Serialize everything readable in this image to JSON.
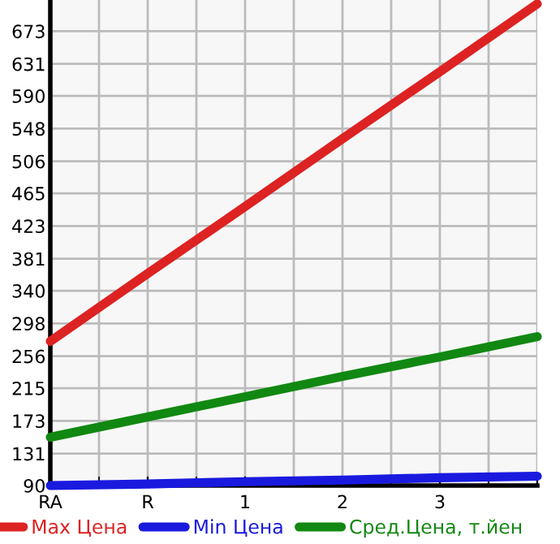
{
  "chart_data": {
    "type": "line",
    "categories": [
      "RA",
      "R",
      "1",
      "2",
      "3",
      null
    ],
    "series": [
      {
        "name": "Max Цена",
        "color": "#dd2222",
        "values": [
          275,
          362,
          448,
          535,
          621,
          708
        ]
      },
      {
        "name": "Min Цена",
        "color": "#1a1adf",
        "values": [
          90,
          92,
          95,
          97,
          100,
          102
        ]
      },
      {
        "name": "Сред.Цена, т.йен",
        "color": "#118811",
        "values": [
          152,
          178,
          204,
          230,
          255,
          281
        ]
      }
    ],
    "ylim": [
      90,
      713
    ],
    "yticks": [
      90,
      131,
      173,
      215,
      256,
      298,
      340,
      381,
      423,
      465,
      506,
      548,
      590,
      631,
      673
    ],
    "grid": true,
    "legend": "bottom",
    "marker": "none",
    "line_style": "solid"
  }
}
